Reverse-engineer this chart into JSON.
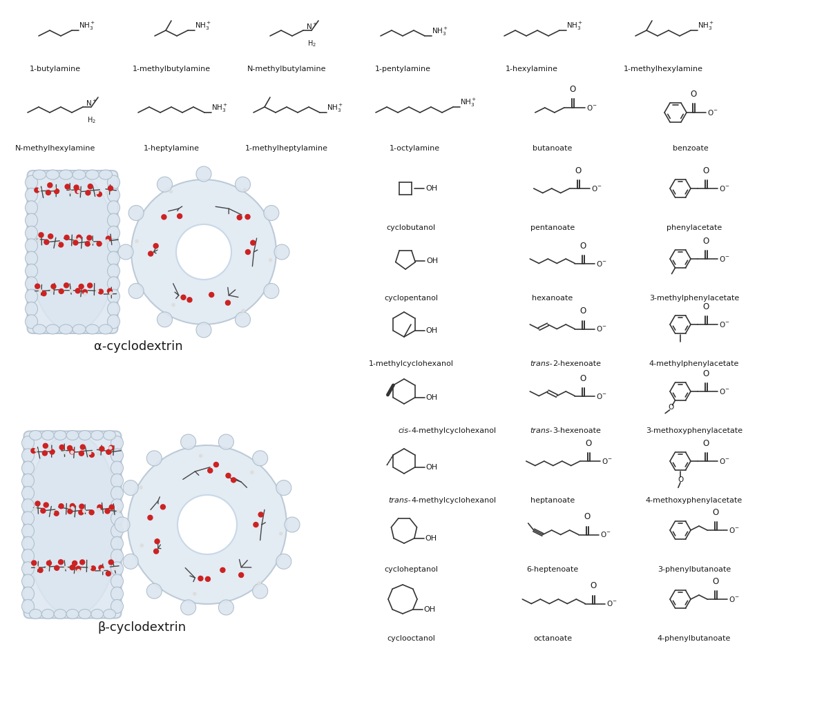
{
  "background_color": "#ffffff",
  "fig_width": 11.93,
  "fig_height": 10.43,
  "dpi": 100,
  "text_color": "#1a1a1a",
  "alpha_label": "α-cyclodextrin",
  "beta_label": "β-cyclodextrin",
  "row1_labels": [
    "1-butylamine",
    "1-methylbutylamine",
    "N-methylbutylamine",
    "1-pentylamine",
    "1-hexylamine",
    "1-methylhexylamine"
  ],
  "row2_labels": [
    "N-methylhexylamine",
    "1-heptylamine",
    "1-methylheptylamine",
    "1-octylamine",
    "butanoate",
    "benzoate"
  ],
  "col1_labels": [
    "cyclobutanol",
    "cyclopentanol",
    "1-methylcyclohexanol",
    "cis-4-methylcyclohexanol",
    "trans-4-methylcyclohexanol",
    "cycloheptanol",
    "cyclooctanol"
  ],
  "col2_labels": [
    "pentanoate",
    "hexanoate",
    "trans-2-hexenoate",
    "trans-3-hexenoate",
    "heptanoate",
    "6-heptenoate",
    "octanoate"
  ],
  "col3_labels": [
    "phenylacetate",
    "3-methylphenylacetate",
    "4-methylphenylacetate",
    "3-methoxyphenylacetate",
    "4-methoxyphenylacetate",
    "3-phenylbutanoate",
    "4-phenylbutanoate"
  ],
  "label_fontsize": 8.0,
  "label_fontsize_cd": 13,
  "struct_linewidth": 1.2
}
